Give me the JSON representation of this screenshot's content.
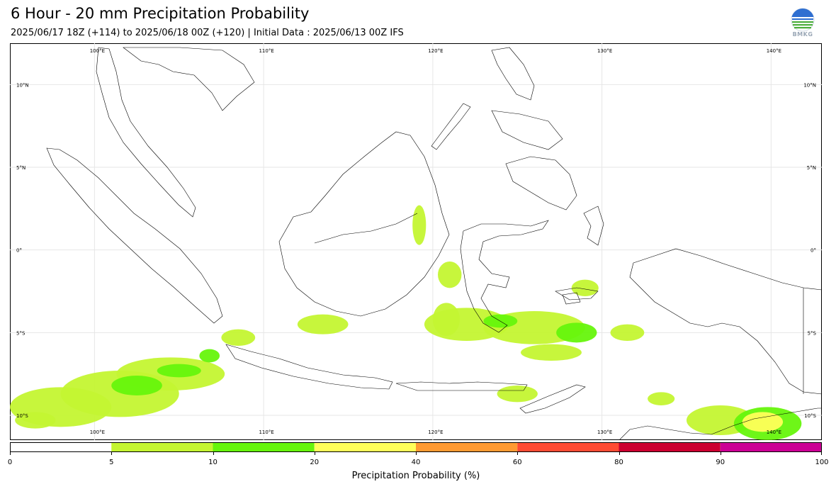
{
  "header": {
    "title": "6 Hour - 20 mm Precipitation Probability",
    "subtitle": "2025/06/17 18Z (+114) to 2025/06/18 00Z (+120) | Initial Data : 2025/06/13 00Z IFS"
  },
  "logo": {
    "text": "BMKG",
    "colors": [
      "#2f6fd1",
      "#4cae3c",
      "#ffffff"
    ]
  },
  "map": {
    "lon_range": [
      95,
      143
    ],
    "lat_range": [
      -11.5,
      12.5
    ],
    "lon_labels_top": [
      "100°E",
      "110°E",
      "120°E",
      "130°E",
      "140°E"
    ],
    "lon_labels_bottom": [
      "100°E",
      "110°E",
      "120°E",
      "130°E",
      "140°E"
    ],
    "lat_labels_left": [
      "10°N",
      "5°N",
      "0°",
      "5°S",
      "10°S"
    ],
    "lat_labels_right": [
      "10°N",
      "5°N",
      "0°",
      "5°S",
      "10°S"
    ],
    "grid_lons": [
      100,
      110,
      120,
      130,
      140
    ],
    "grid_lats": [
      10,
      5,
      0,
      -5,
      -10
    ],
    "precip_areas": [
      {
        "lon": 98.0,
        "lat": -9.5,
        "rx": 3.0,
        "ry": 1.2,
        "level": 1
      },
      {
        "lon": 101.5,
        "lat": -8.7,
        "rx": 3.5,
        "ry": 1.4,
        "level": 1
      },
      {
        "lon": 104.5,
        "lat": -7.5,
        "rx": 3.2,
        "ry": 1.0,
        "level": 1
      },
      {
        "lon": 102.5,
        "lat": -8.2,
        "rx": 1.5,
        "ry": 0.6,
        "level": 2
      },
      {
        "lon": 105.0,
        "lat": -7.3,
        "rx": 1.3,
        "ry": 0.4,
        "level": 2
      },
      {
        "lon": 96.5,
        "lat": -10.3,
        "rx": 1.2,
        "ry": 0.5,
        "level": 1
      },
      {
        "lon": 122.0,
        "lat": -4.5,
        "rx": 2.5,
        "ry": 1.0,
        "level": 1
      },
      {
        "lon": 126.0,
        "lat": -4.7,
        "rx": 3.0,
        "ry": 1.0,
        "level": 1
      },
      {
        "lon": 128.5,
        "lat": -5.0,
        "rx": 1.2,
        "ry": 0.6,
        "level": 2
      },
      {
        "lon": 124.0,
        "lat": -4.3,
        "rx": 1.0,
        "ry": 0.4,
        "level": 2
      },
      {
        "lon": 120.8,
        "lat": -4.2,
        "rx": 0.8,
        "ry": 1.0,
        "level": 1
      },
      {
        "lon": 127.0,
        "lat": -6.2,
        "rx": 1.8,
        "ry": 0.5,
        "level": 1
      },
      {
        "lon": 125.0,
        "lat": -8.7,
        "rx": 1.2,
        "ry": 0.5,
        "level": 1
      },
      {
        "lon": 131.5,
        "lat": -5.0,
        "rx": 1.0,
        "ry": 0.5,
        "level": 1
      },
      {
        "lon": 137.0,
        "lat": -10.3,
        "rx": 2.0,
        "ry": 0.9,
        "level": 1
      },
      {
        "lon": 139.8,
        "lat": -10.5,
        "rx": 2.0,
        "ry": 1.0,
        "level": 2
      },
      {
        "lon": 139.5,
        "lat": -10.4,
        "rx": 1.2,
        "ry": 0.6,
        "level": 3
      },
      {
        "lon": 133.5,
        "lat": -9.0,
        "rx": 0.8,
        "ry": 0.4,
        "level": 1
      },
      {
        "lon": 113.5,
        "lat": -4.5,
        "rx": 1.5,
        "ry": 0.6,
        "level": 1
      },
      {
        "lon": 108.5,
        "lat": -5.3,
        "rx": 1.0,
        "ry": 0.5,
        "level": 1
      },
      {
        "lon": 106.8,
        "lat": -6.4,
        "rx": 0.6,
        "ry": 0.4,
        "level": 2
      },
      {
        "lon": 121.0,
        "lat": -1.5,
        "rx": 0.7,
        "ry": 0.8,
        "level": 1
      },
      {
        "lon": 129.0,
        "lat": -2.3,
        "rx": 0.8,
        "ry": 0.5,
        "level": 1
      },
      {
        "lon": 119.2,
        "lat": 1.5,
        "rx": 0.4,
        "ry": 1.2,
        "level": 1
      }
    ]
  },
  "colorbar": {
    "boundaries": [
      0,
      5,
      10,
      20,
      40,
      60,
      80,
      90,
      100
    ],
    "tick_labels": [
      "0",
      "5",
      "10",
      "20",
      "40",
      "60",
      "80",
      "90",
      "100"
    ],
    "colors": [
      "#ffffff",
      "#c4f531",
      "#66f50c",
      "#ffff59",
      "#ff9a32",
      "#ff4b33",
      "#cc0030",
      "#cc0095"
    ],
    "label": "Precipitation Probability (%)"
  }
}
